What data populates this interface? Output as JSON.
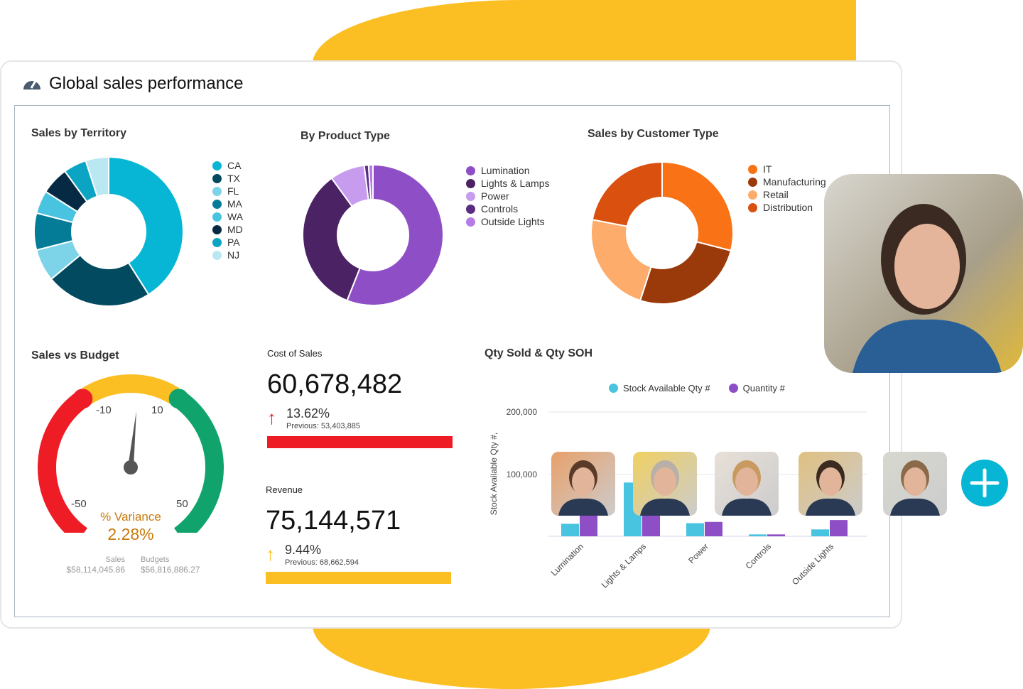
{
  "title": "Global sales performance",
  "territory": {
    "title": "Sales by Territory",
    "type": "donut",
    "items": [
      {
        "label": "CA",
        "value": 41,
        "color": "#06b6d4"
      },
      {
        "label": "TX",
        "value": 23,
        "color": "#024a60"
      },
      {
        "label": "FL",
        "value": 7,
        "color": "#7dd3e8"
      },
      {
        "label": "MA",
        "value": 8,
        "color": "#057c97"
      },
      {
        "label": "WA",
        "value": 5,
        "color": "#48c4e0"
      },
      {
        "label": "MD",
        "value": 6,
        "color": "#062a43"
      },
      {
        "label": "PA",
        "value": 5,
        "color": "#0ba5c3"
      },
      {
        "label": "NJ",
        "value": 5,
        "color": "#b9e8f3"
      }
    ]
  },
  "product": {
    "title": "By Product Type",
    "type": "donut",
    "items": [
      {
        "label": "Lumination",
        "value": 56,
        "color": "#8e4fc6"
      },
      {
        "label": "Lights & Lamps",
        "value": 34,
        "color": "#4b2263"
      },
      {
        "label": "Power",
        "value": 8,
        "color": "#c79cef"
      },
      {
        "label": "Controls",
        "value": 1,
        "color": "#5a2d82"
      },
      {
        "label": "Outside Lights",
        "value": 1,
        "color": "#b57ce8"
      }
    ]
  },
  "customer": {
    "title": "Sales by Customer Type",
    "type": "donut",
    "items": [
      {
        "label": "IT",
        "value": 29,
        "color": "#f97316"
      },
      {
        "label": "Manufacturing",
        "value": 26,
        "color": "#9a3a0a"
      },
      {
        "label": "Retail",
        "value": 23,
        "color": "#fdac6b"
      },
      {
        "label": "Distribution",
        "value": 22,
        "color": "#d9500f"
      }
    ]
  },
  "gauge": {
    "title": "Sales vs Budget",
    "ticks": [
      "-50",
      "-10",
      "10",
      "50"
    ],
    "label": "% Variance",
    "value_text": "2.28%",
    "value": 2.28,
    "sales_label": "Sales",
    "sales_value": "$58,114,045.86",
    "budgets_label": "Budgets",
    "budgets_value": "$56,816,886.27",
    "colors": {
      "low": "#ee1c25",
      "mid": "#fbbf24",
      "high": "#10a36b",
      "needle": "#555555",
      "label": "#c97a0a"
    }
  },
  "cost": {
    "title": "Cost of Sales",
    "value": "60,678,482",
    "change": "13.62%",
    "previous": "Previous: 53,403,885",
    "color": "#ee1c25"
  },
  "revenue": {
    "title": "Revenue",
    "value": "75,144,571",
    "change": "9.44%",
    "previous": "Previous: 68,662,594",
    "color": "#fbbf24"
  },
  "chart_data": {
    "type": "bar",
    "title": "Qty Sold & Qty SOH",
    "ylabel": "Stock Available Qty #,",
    "categories": [
      "Lumination",
      "Lights & Lamps",
      "Power",
      "Controls",
      "Outside Lights"
    ],
    "yticks": [
      "200,000",
      "100,000"
    ],
    "ylim": [
      0,
      200000
    ],
    "legend": "top",
    "series": [
      {
        "name": "Stock Available Qty #",
        "color": "#48c4e0",
        "values": [
          20000,
          86000,
          21000,
          3000,
          11000
        ]
      },
      {
        "name": "Quantity #",
        "color": "#8e4fc6",
        "values": [
          33000,
          34000,
          23000,
          3000,
          26000
        ]
      }
    ]
  },
  "icons": {
    "title": "speedometer-icon",
    "add": "plus-icon"
  },
  "accent": "#06b6d4"
}
